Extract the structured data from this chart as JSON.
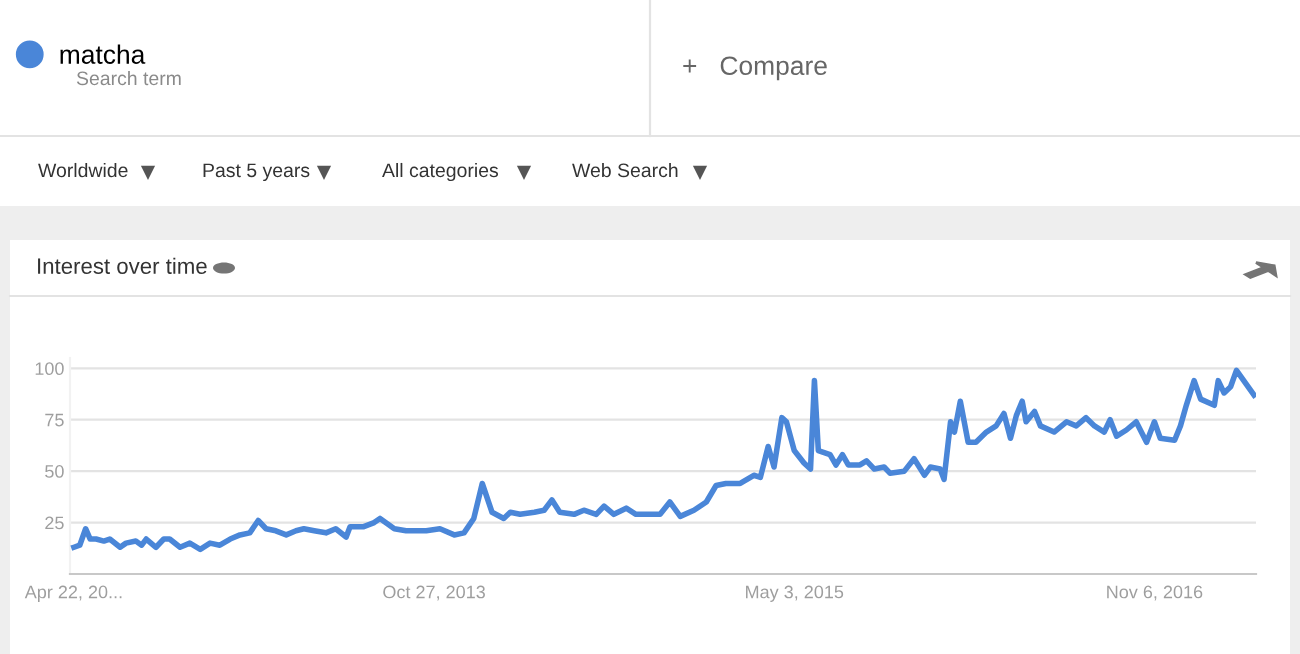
{
  "chart_data": {
    "type": "line",
    "title": "Interest over time",
    "annotations": [
      "Search term",
      "+   Compare",
      "Worldwide",
      "Past 5 years",
      "All categories",
      "Web Search"
    ],
    "legend": "top left",
    "grid": "y",
    "marker": "none",
    "line_style": "solid",
    "xlim": [
      "2012-04-16",
      "2017-04-11"
    ],
    "xticks": [
      {
        "value": "2012-04-22",
        "label": "Apr 22, 20..."
      },
      {
        "value": "2013-10-27",
        "label": "Oct 27, 2013"
      },
      {
        "value": "2015-05-03",
        "label": "May 3, 2015"
      },
      {
        "value": "2016-11-06",
        "label": "Nov 6, 2016"
      }
    ],
    "ylim": [
      0,
      105
    ],
    "yticks": [
      {
        "value": 0,
        "label": null
      },
      25,
      50,
      75,
      100
    ],
    "x": [
      "2012-04-22",
      "2012-05-01",
      "2012-05-10",
      "2012-05-17",
      "2012-05-26",
      "2012-06-07",
      "2012-06-16",
      "2012-07-02",
      "2012-07-11",
      "2012-07-26",
      "2012-08-04",
      "2012-08-11",
      "2012-08-26",
      "2012-09-07",
      "2012-09-16",
      "2012-10-02",
      "2012-10-17",
      "2012-11-02",
      "2012-11-17",
      "2012-12-02",
      "2012-12-18",
      "2013-01-02",
      "2013-01-17",
      "2013-01-30",
      "2013-02-11",
      "2013-02-26",
      "2013-03-14",
      "2013-03-29",
      "2013-04-10",
      "2013-04-26",
      "2013-05-14",
      "2013-05-29",
      "2013-06-14",
      "2013-06-20",
      "2013-07-11",
      "2013-07-27",
      "2013-08-05",
      "2013-08-27",
      "2013-09-14",
      "2013-10-15",
      "2013-11-05",
      "2013-11-27",
      "2013-12-12",
      "2013-12-27",
      "2014-01-09",
      "2014-01-24",
      "2014-02-11",
      "2014-02-21",
      "2014-03-08",
      "2014-03-30",
      "2014-04-14",
      "2014-04-26",
      "2014-05-08",
      "2014-05-30",
      "2014-06-14",
      "2014-07-03",
      "2014-07-15",
      "2014-07-30",
      "2014-08-18",
      "2014-09-02",
      "2014-09-08",
      "2014-10-09",
      "2014-10-24",
      "2014-11-09",
      "2014-11-30",
      "2014-12-19",
      "2015-01-03",
      "2015-01-18",
      "2015-02-09",
      "2015-03-02",
      "2015-03-12",
      "2015-03-24",
      "2015-04-02",
      "2015-04-14",
      "2015-04-21",
      "2015-05-03",
      "2015-05-18",
      "2015-05-28",
      "2015-06-03",
      "2015-06-09",
      "2015-06-27",
      "2015-07-06",
      "2015-07-16",
      "2015-07-25",
      "2015-08-12",
      "2015-08-22",
      "2015-09-03",
      "2015-09-18",
      "2015-09-27",
      "2015-10-19",
      "2015-11-03",
      "2015-11-19",
      "2015-11-28",
      "2015-12-13",
      "2015-12-19",
      "2015-12-29",
      "2016-01-04",
      "2016-01-13",
      "2016-01-25",
      "2016-02-06",
      "2016-02-22",
      "2016-03-08",
      "2016-03-20",
      "2016-03-30",
      "2016-04-08",
      "2016-04-17",
      "2016-04-23",
      "2016-05-06",
      "2016-05-15",
      "2016-06-05",
      "2016-06-24",
      "2016-07-09",
      "2016-07-24",
      "2016-08-06",
      "2016-08-21",
      "2016-08-30",
      "2016-09-09",
      "2016-09-24",
      "2016-10-09",
      "2016-10-25",
      "2016-11-06",
      "2016-11-15",
      "2016-12-07",
      "2016-12-16",
      "2016-12-25",
      "2017-01-06",
      "2017-01-16",
      "2017-02-06",
      "2017-02-12",
      "2017-02-21",
      "2017-03-03",
      "2017-03-12",
      "2017-04-08"
    ],
    "series": [
      {
        "name": "matcha",
        "color": "#4a86d8",
        "values": [
          13,
          14,
          22,
          17,
          17,
          16,
          17,
          13,
          15,
          16,
          14,
          17,
          13,
          17,
          17,
          13,
          15,
          12,
          15,
          14,
          17,
          19,
          20,
          26,
          22,
          21,
          19,
          21,
          22,
          21,
          20,
          22,
          18,
          23,
          23,
          25,
          27,
          22,
          21,
          21,
          22,
          19,
          20,
          27,
          44,
          30,
          27,
          30,
          29,
          30,
          31,
          36,
          30,
          29,
          31,
          29,
          33,
          29,
          32,
          29,
          29,
          29,
          35,
          28,
          31,
          35,
          43,
          44,
          44,
          48,
          47,
          62,
          52,
          76,
          74,
          60,
          54,
          51,
          94,
          60,
          58,
          53,
          58,
          53,
          53,
          55,
          51,
          52,
          49,
          50,
          56,
          48,
          52,
          51,
          46,
          74,
          69,
          84,
          64,
          64,
          69,
          72,
          78,
          66,
          77,
          84,
          74,
          79,
          72,
          69,
          74,
          72,
          76,
          72,
          69,
          75,
          67,
          70,
          74,
          64,
          74,
          66,
          65,
          72,
          82,
          94,
          85,
          82,
          94,
          88,
          91,
          99,
          87
        ]
      }
    ]
  }
}
